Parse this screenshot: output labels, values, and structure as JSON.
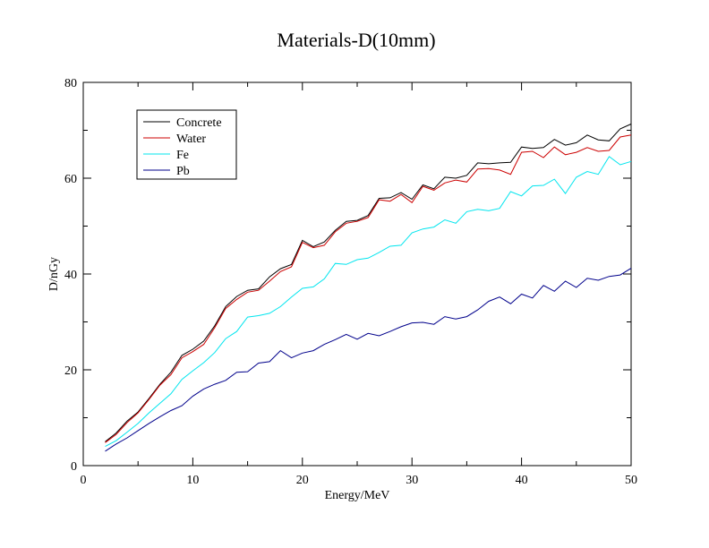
{
  "chart_data": {
    "type": "line",
    "title": "Materials-D(10mm)",
    "xlabel": "Energy/MeV",
    "ylabel": "D/nGy",
    "xlim": [
      0,
      50
    ],
    "ylim": [
      0,
      80
    ],
    "xticks": [
      0,
      10,
      20,
      30,
      40,
      50
    ],
    "yticks": [
      0,
      20,
      40,
      60,
      80
    ],
    "grid": false,
    "legend_position": "top-left",
    "x": [
      2,
      3,
      4,
      5,
      6,
      7,
      8,
      9,
      10,
      11,
      12,
      13,
      14,
      15,
      16,
      17,
      18,
      19,
      20,
      21,
      22,
      23,
      24,
      25,
      26,
      27,
      28,
      29,
      30,
      31,
      32,
      33,
      34,
      35,
      36,
      37,
      38,
      39,
      40,
      41,
      42,
      43,
      44,
      45,
      46,
      47,
      48,
      49,
      50
    ],
    "series": [
      {
        "name": "Concrete",
        "color": "#000000",
        "values": [
          5.0,
          6.8,
          9.3,
          11.2,
          14.0,
          17.0,
          19.5,
          23.0,
          24.3,
          26.0,
          29.2,
          33.2,
          35.3,
          36.6,
          36.9,
          39.4,
          41.1,
          42.0,
          47.0,
          45.7,
          46.7,
          49.1,
          51.0,
          51.2,
          52.2,
          55.8,
          55.9,
          57.0,
          55.6,
          58.6,
          57.8,
          60.2,
          60.0,
          60.6,
          63.2,
          63.0,
          63.2,
          63.3,
          66.5,
          66.2,
          66.4,
          68.1,
          66.9,
          67.4,
          69.0,
          68.0,
          67.8,
          70.3,
          71.3
        ]
      },
      {
        "name": "Water",
        "color": "#cc0000",
        "values": [
          4.8,
          6.5,
          9.0,
          11.0,
          13.8,
          16.8,
          19.0,
          22.5,
          23.8,
          25.3,
          28.8,
          32.8,
          34.7,
          36.2,
          36.6,
          38.5,
          40.5,
          41.5,
          46.6,
          45.5,
          46.0,
          48.8,
          50.6,
          51.0,
          51.8,
          55.5,
          55.2,
          56.6,
          54.9,
          58.3,
          57.5,
          59.0,
          59.6,
          59.2,
          61.9,
          62.0,
          61.7,
          60.8,
          65.4,
          65.6,
          64.3,
          66.5,
          64.9,
          65.4,
          66.4,
          65.6,
          65.8,
          68.6,
          69.0
        ]
      },
      {
        "name": "Fe",
        "color": "#00e5ee",
        "values": [
          4.0,
          5.2,
          7.0,
          8.8,
          11.0,
          13.0,
          15.0,
          18.0,
          19.8,
          21.5,
          23.6,
          26.5,
          28.0,
          31.0,
          31.3,
          31.8,
          33.2,
          35.2,
          37.0,
          37.3,
          39.0,
          42.2,
          42.0,
          43.0,
          43.3,
          44.5,
          45.8,
          46.0,
          48.6,
          49.4,
          49.8,
          51.3,
          50.6,
          53.0,
          53.5,
          53.2,
          53.7,
          57.2,
          56.3,
          58.4,
          58.5,
          59.8,
          56.8,
          60.2,
          61.4,
          60.8,
          64.5,
          62.8,
          63.5
        ]
      },
      {
        "name": "Pb",
        "color": "#00008b",
        "values": [
          3.0,
          4.5,
          5.8,
          7.3,
          8.8,
          10.2,
          11.5,
          12.5,
          14.5,
          16.0,
          17.0,
          17.8,
          19.5,
          19.6,
          21.4,
          21.7,
          24.0,
          22.5,
          23.5,
          24.0,
          25.3,
          26.3,
          27.4,
          26.4,
          27.6,
          27.1,
          28.0,
          29.0,
          29.8,
          29.9,
          29.5,
          31.1,
          30.6,
          31.1,
          32.5,
          34.3,
          35.2,
          33.8,
          35.8,
          35.0,
          37.6,
          36.4,
          38.5,
          37.2,
          39.1,
          38.7,
          39.5,
          39.8,
          41.2
        ]
      }
    ]
  }
}
